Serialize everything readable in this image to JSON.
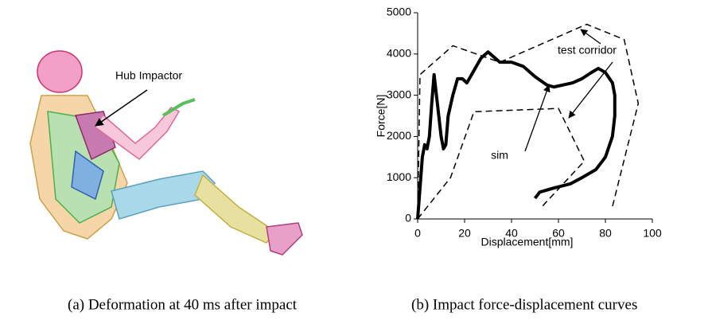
{
  "panel_a": {
    "annotation": "Hub Impactor",
    "caption": "(a) Deformation at 40 ms after impact"
  },
  "chart_data": {
    "type": "line",
    "caption": "(b) Impact force-displacement curves",
    "xlabel": "Displacement[mm]",
    "ylabel": "Force[N]",
    "xlim": [
      0,
      100
    ],
    "xticks": [
      0,
      20,
      40,
      60,
      80,
      100
    ],
    "ylim": [
      0,
      5000
    ],
    "yticks": [
      0,
      1000,
      2000,
      3000,
      4000,
      5000
    ],
    "series": [
      {
        "name": "sim",
        "color": "#000000",
        "line_style": "solid",
        "x": [
          0,
          2,
          3,
          4,
          5,
          6,
          7,
          8,
          9,
          10,
          11,
          12,
          13,
          15,
          17,
          19,
          21,
          24,
          27,
          30,
          32,
          35,
          40,
          45,
          50,
          55,
          58,
          62,
          66,
          70,
          74,
          77,
          80,
          83,
          84,
          84,
          83,
          80,
          76,
          70,
          65,
          58,
          52,
          50
        ],
        "values": [
          0,
          1500,
          1800,
          1700,
          2000,
          2800,
          3500,
          3000,
          2500,
          2000,
          1700,
          1800,
          2500,
          3000,
          3400,
          3400,
          3300,
          3600,
          3900,
          4050,
          3950,
          3800,
          3800,
          3700,
          3450,
          3250,
          3200,
          3250,
          3300,
          3400,
          3550,
          3650,
          3550,
          3300,
          3000,
          2500,
          2000,
          1500,
          1200,
          1000,
          850,
          750,
          650,
          500
        ]
      },
      {
        "name": "test corridor",
        "color": "#000000",
        "line_style": "dashed",
        "x": [
          0,
          1,
          15,
          35,
          72,
          88,
          94,
          83
        ],
        "values": [
          0,
          3500,
          4200,
          3800,
          4720,
          4350,
          2800,
          300
        ]
      },
      {
        "name": null,
        "color": "#000000",
        "line_style": "dashed",
        "x": [
          0,
          14,
          24,
          60,
          71,
          53
        ],
        "values": [
          0,
          1000,
          2600,
          2680,
          1400,
          300
        ]
      }
    ]
  }
}
